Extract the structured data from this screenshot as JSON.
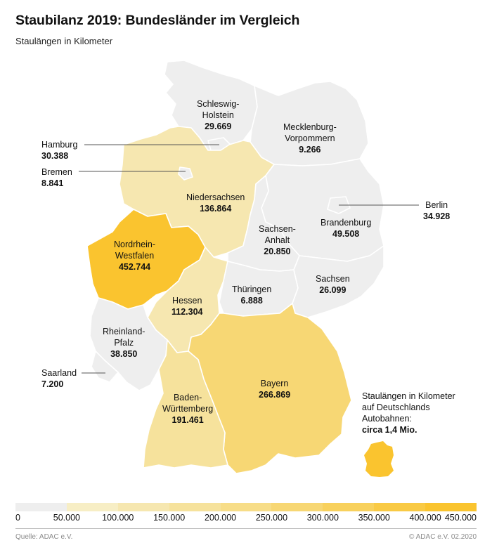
{
  "title": "Staubilanz 2019: Bundesländer im Vergleich",
  "subtitle": "Staulängen in Kilometer",
  "states": [
    {
      "id": "schleswig-holstein",
      "name": [
        "Schleswig-",
        "Holstein"
      ],
      "value": "29.669",
      "km": 29669
    },
    {
      "id": "mecklenburg-vorpommern",
      "name": [
        "Mecklenburg-",
        "Vorpommern"
      ],
      "value": "9.266",
      "km": 9266
    },
    {
      "id": "hamburg",
      "name": [
        "Hamburg"
      ],
      "value": "30.388",
      "km": 30388
    },
    {
      "id": "bremen",
      "name": [
        "Bremen"
      ],
      "value": "8.841",
      "km": 8841
    },
    {
      "id": "niedersachsen",
      "name": [
        "Niedersachsen"
      ],
      "value": "136.864",
      "km": 136864
    },
    {
      "id": "berlin",
      "name": [
        "Berlin"
      ],
      "value": "34.928",
      "km": 34928
    },
    {
      "id": "brandenburg",
      "name": [
        "Brandenburg"
      ],
      "value": "49.508",
      "km": 49508
    },
    {
      "id": "sachsen-anhalt",
      "name": [
        "Sachsen-",
        "Anhalt"
      ],
      "value": "20.850",
      "km": 20850
    },
    {
      "id": "nordrhein-westfalen",
      "name": [
        "Nordrhein-",
        "Westfalen"
      ],
      "value": "452.744",
      "km": 452744
    },
    {
      "id": "hessen",
      "name": [
        "Hessen"
      ],
      "value": "112.304",
      "km": 112304
    },
    {
      "id": "thueringen",
      "name": [
        "Thüringen"
      ],
      "value": "6.888",
      "km": 6888
    },
    {
      "id": "sachsen",
      "name": [
        "Sachsen"
      ],
      "value": "26.099",
      "km": 26099
    },
    {
      "id": "rheinland-pfalz",
      "name": [
        "Rheinland-",
        "Pfalz"
      ],
      "value": "38.850",
      "km": 38850
    },
    {
      "id": "saarland",
      "name": [
        "Saarland"
      ],
      "value": "7.200",
      "km": 7200
    },
    {
      "id": "bayern",
      "name": [
        "Bayern"
      ],
      "value": "266.869",
      "km": 266869
    },
    {
      "id": "baden-wuerttemberg",
      "name": [
        "Baden-",
        "Württemberg"
      ],
      "value": "191.461",
      "km": 191461
    }
  ],
  "info": {
    "lines": [
      "Staulängen in Kilometer",
      "auf Deutschlands",
      "Autobahnen:"
    ],
    "total": "circa 1,4 Mio."
  },
  "legend": {
    "ticks": [
      "0",
      "50.000",
      "100.000",
      "150.000",
      "200.000",
      "250.000",
      "300.000",
      "350.000",
      "400.000",
      "450.000"
    ],
    "colors": [
      "#eeeeee",
      "#f7eec5",
      "#f6e7b0",
      "#f6e29c",
      "#f7dd88",
      "#f7d774",
      "#f8d15d",
      "#f9ca45",
      "#fac42f"
    ],
    "max": 450000
  },
  "colors": {
    "low": "#eeeeee",
    "accent": "#fac42f",
    "inset_map": "#fac42f"
  },
  "footer": {
    "source": "Quelle: ADAC e.V.",
    "copyright": "© ADAC e.V.  02.2020"
  }
}
